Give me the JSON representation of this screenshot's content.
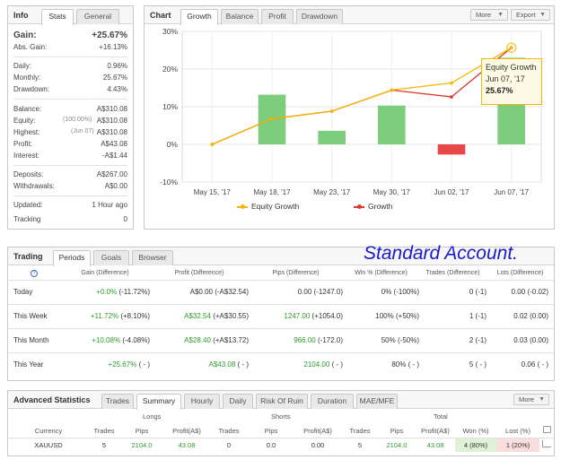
{
  "info": {
    "tabs": [
      "Info",
      "Stats",
      "General"
    ],
    "gain": {
      "label": "Gain:",
      "value": "+25.67%"
    },
    "abs_gain": {
      "label": "Abs. Gain:",
      "value": "+16.13%"
    },
    "daily": {
      "label": "Daily:",
      "value": "0.96%"
    },
    "monthly": {
      "label": "Monthly:",
      "value": "25.67%"
    },
    "drawdown": {
      "label": "Drawdown:",
      "value": "4.43%"
    },
    "balance": {
      "label": "Balance:",
      "value": "A$310.08"
    },
    "equity": {
      "label": "Equity:",
      "note": "(100.00%)",
      "value": "A$310.08"
    },
    "highest": {
      "label": "Highest:",
      "note": "(Jun 07)",
      "value": "A$310.08"
    },
    "profit": {
      "label": "Profit:",
      "value": "A$43.08"
    },
    "interest": {
      "label": "Interest:",
      "value": "-A$1.44"
    },
    "deposits": {
      "label": "Deposits:",
      "value": "A$267.00"
    },
    "withdrawals": {
      "label": "Withdrawals:",
      "value": "A$0.00"
    },
    "updated": {
      "label": "Updated:",
      "value": "1 Hour ago"
    },
    "tracking": {
      "label": "Tracking",
      "value": "0"
    }
  },
  "chart_panel": {
    "title": "Chart",
    "tabs": [
      "Growth",
      "Balance",
      "Profit",
      "Drawdown"
    ],
    "more_label": "More",
    "export_label": "Export",
    "tooltip": {
      "title": "Equity Growth",
      "date": "Jun 07, '17",
      "value": "25.67%"
    }
  },
  "chart_data": {
    "type": "line",
    "categories": [
      "May 15, '17",
      "May 18, '17",
      "May 23, '17",
      "May 30, '17",
      "Jun 02, '17",
      "Jun 07, '17"
    ],
    "y_ticks": [
      "30%",
      "20%",
      "10%",
      "0%",
      "-10%"
    ],
    "ylim": [
      -10,
      30
    ],
    "bars": [
      0,
      13.2,
      3.6,
      10.3,
      -2.7,
      23
    ],
    "series": [
      {
        "name": "Equity Growth",
        "color": "#f5b700",
        "values": [
          0,
          6.8,
          8.8,
          14.4,
          16.3,
          25.67
        ]
      },
      {
        "name": "Growth",
        "color": "#d83a2a",
        "values": [
          0,
          6.8,
          8.8,
          14.4,
          12.6,
          25.67
        ]
      }
    ],
    "bar_colors": {
      "positive": "#7ccd7c",
      "negative": "#e84848"
    },
    "grid": true,
    "legend": "bottom"
  },
  "trading": {
    "title": "Trading",
    "tabs": [
      "Periods",
      "Goals",
      "Browser"
    ],
    "account_title": "Standard Account.",
    "headers": [
      "Gain (Difference)",
      "Profit (Difference)",
      "Pips (Difference)",
      "Win % (Difference)",
      "Trades (Difference)",
      "Lots (Difference)"
    ],
    "rows": [
      {
        "period": "Today",
        "gain": "+0.0%",
        "gain_diff": "(-11.72%)",
        "profit": "A$0.00",
        "profit_diff": "(-A$32.54)",
        "pips": "0.00",
        "pips_diff": "(-1247.0)",
        "win": "0%",
        "win_diff": "(-100%)",
        "trades": "0",
        "trades_diff": "(-1)",
        "lots": "0.00",
        "lots_diff": "(-0.02)"
      },
      {
        "period": "This Week",
        "gain": "+11.72%",
        "gain_diff": "(+8.10%)",
        "profit": "A$32.54",
        "profit_diff": "(+A$30.55)",
        "pips": "1247.00",
        "pips_diff": "(+1054.0)",
        "win": "100%",
        "win_diff": "(+50%)",
        "trades": "1",
        "trades_diff": "(-1)",
        "lots": "0.02",
        "lots_diff": "(0.00)"
      },
      {
        "period": "This Month",
        "gain": "+10.08%",
        "gain_diff": "(-4.08%)",
        "profit": "A$28.40",
        "profit_diff": "(+A$13.72)",
        "pips": "966.00",
        "pips_diff": "(-172.0)",
        "win": "50%",
        "win_diff": "(-50%)",
        "trades": "2",
        "trades_diff": "(-1)",
        "lots": "0.03",
        "lots_diff": "(0.00)"
      },
      {
        "period": "This Year",
        "gain": "+25.67%",
        "gain_diff": "( - )",
        "profit": "A$43.08",
        "profit_diff": "( - )",
        "pips": "2104.00",
        "pips_diff": "( - )",
        "win": "80%",
        "win_diff": "( - )",
        "trades": "5",
        "trades_diff": "( - )",
        "lots": "0.06",
        "lots_diff": "( - )"
      }
    ]
  },
  "advanced": {
    "title": "Advanced Statistics",
    "tabs": [
      "Trades",
      "Summary",
      "Hourly",
      "Daily",
      "Risk Of Ruin",
      "Duration",
      "MAE/MFE"
    ],
    "more_label": "More",
    "groups": [
      "Longs",
      "Shorts",
      "Total"
    ],
    "headers": [
      "Currency",
      "Trades",
      "Pips",
      "Profit(A$)",
      "Trades",
      "Pips",
      "Profit(A$)",
      "Trades",
      "Pips",
      "Profit(A$)",
      "Won (%)",
      "Lost (%)"
    ],
    "row": {
      "currency": "XAUUSD",
      "l_trades": "5",
      "l_pips": "2104.0",
      "l_profit": "43.08",
      "s_trades": "0",
      "s_pips": "0.0",
      "s_profit": "0.00",
      "t_trades": "5",
      "t_pips": "2104.0",
      "t_profit": "43.08",
      "won": "4 (80%)",
      "lost": "1 (20%)"
    }
  }
}
